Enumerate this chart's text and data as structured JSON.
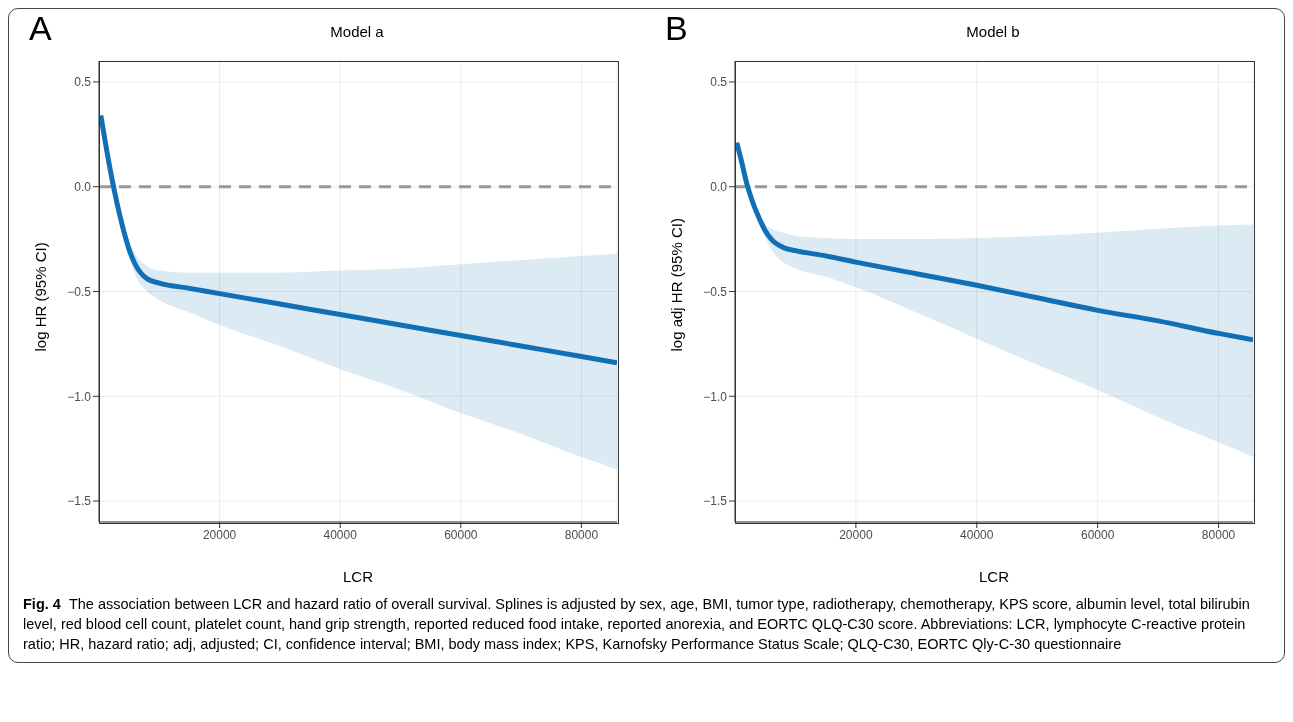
{
  "chart_data": [
    {
      "type": "line",
      "title": "Model a",
      "xlabel": "LCR",
      "ylabel": "log HR (95% CI)",
      "annotations": [
        "A"
      ],
      "x": [
        300,
        1000,
        2000,
        3000,
        4000,
        5000,
        6000,
        8000,
        10000,
        15000,
        20000,
        30000,
        40000,
        50000,
        60000,
        70000,
        80000,
        85900
      ],
      "series": [
        {
          "color": "#1170b5",
          "values": [
            0.34,
            0.22,
            0.06,
            -0.08,
            -0.2,
            -0.3,
            -0.37,
            -0.44,
            -0.46,
            -0.485,
            -0.51,
            -0.56,
            -0.61,
            -0.66,
            -0.71,
            -0.76,
            -0.81,
            -0.84
          ],
          "upper": [
            0.36,
            0.24,
            0.08,
            -0.06,
            -0.17,
            -0.26,
            -0.32,
            -0.38,
            -0.4,
            -0.41,
            -0.41,
            -0.41,
            -0.4,
            -0.39,
            -0.37,
            -0.35,
            -0.33,
            -0.32
          ],
          "lower": [
            0.32,
            0.2,
            0.04,
            -0.1,
            -0.23,
            -0.34,
            -0.42,
            -0.5,
            -0.54,
            -0.6,
            -0.66,
            -0.76,
            -0.87,
            -0.97,
            -1.08,
            -1.18,
            -1.29,
            -1.35
          ]
        }
      ],
      "xlim": [
        0,
        85900
      ],
      "xticks": [
        20000,
        40000,
        60000,
        80000
      ],
      "ylim": [
        -1.6,
        0.6
      ],
      "yticks": [
        {
          "value": -1.5,
          "label": "−1.5"
        },
        {
          "value": -1,
          "label": "−1.0"
        },
        {
          "value": -0.5,
          "label": "−0.5"
        },
        {
          "value": 0,
          "label": "0.0"
        },
        {
          "value": 0.5,
          "label": "0.5"
        }
      ],
      "ref_lines": [
        {
          "axis": "y",
          "value": 0,
          "color": "#999999",
          "line_style": "dashed"
        }
      ],
      "grid": true,
      "legend": false,
      "marker": "none",
      "line_style": "solid"
    },
    {
      "type": "line",
      "title": "Model b",
      "xlabel": "LCR",
      "ylabel": "log adj HR (95% CI)",
      "annotations": [
        "B",
        "Fig. 4",
        "The association between LCR and hazard ratio of overall survival. Splines is adjusted by sex, age, BMI, tumor type, radiotherapy, chemotherapy, KPS score, albumin level, total bilirubin level, red blood cell count, platelet count, hand grip strength, reported reduced food intake, reported anorexia, and EORTC QLQ-C30 score. Abbreviations: LCR, lymphocyte C-reactive protein ratio; HR, hazard ratio; adj, adjusted; CI, confidence interval; BMI, body mass index; KPS, Karnofsky Performance Status Scale; QLQ-C30, EORTC Qly-C-30 questionnaire"
      ],
      "x": [
        300,
        1000,
        2000,
        3000,
        4000,
        5000,
        6000,
        8000,
        10000,
        15000,
        20000,
        30000,
        40000,
        50000,
        60000,
        70000,
        80000,
        85700
      ],
      "series": [
        {
          "color": "#1170b5",
          "values": [
            0.21,
            0.13,
            0.01,
            -0.08,
            -0.15,
            -0.21,
            -0.25,
            -0.29,
            -0.305,
            -0.33,
            -0.36,
            -0.415,
            -0.47,
            -0.53,
            -0.59,
            -0.64,
            -0.7,
            -0.73
          ],
          "upper": [
            0.22,
            0.14,
            0.03,
            -0.06,
            -0.13,
            -0.18,
            -0.2,
            -0.22,
            -0.235,
            -0.245,
            -0.25,
            -0.25,
            -0.245,
            -0.235,
            -0.22,
            -0.2,
            -0.185,
            -0.18
          ],
          "lower": [
            0.2,
            0.12,
            -0.01,
            -0.1,
            -0.17,
            -0.24,
            -0.3,
            -0.36,
            -0.39,
            -0.43,
            -0.48,
            -0.6,
            -0.725,
            -0.85,
            -0.97,
            -1.1,
            -1.22,
            -1.29
          ]
        }
      ],
      "xlim": [
        0,
        85700
      ],
      "xticks": [
        20000,
        40000,
        60000,
        80000
      ],
      "ylim": [
        -1.6,
        0.6
      ],
      "yticks": [
        {
          "value": -1.5,
          "label": "−1.5"
        },
        {
          "value": -1,
          "label": "−1.0"
        },
        {
          "value": -0.5,
          "label": "−0.5"
        },
        {
          "value": 0,
          "label": "0.0"
        },
        {
          "value": 0.5,
          "label": "0.5"
        }
      ],
      "ref_lines": [
        {
          "axis": "y",
          "value": 0,
          "color": "#999999",
          "line_style": "dashed"
        }
      ],
      "grid": true,
      "legend": false,
      "marker": "none",
      "line_style": "solid"
    }
  ]
}
